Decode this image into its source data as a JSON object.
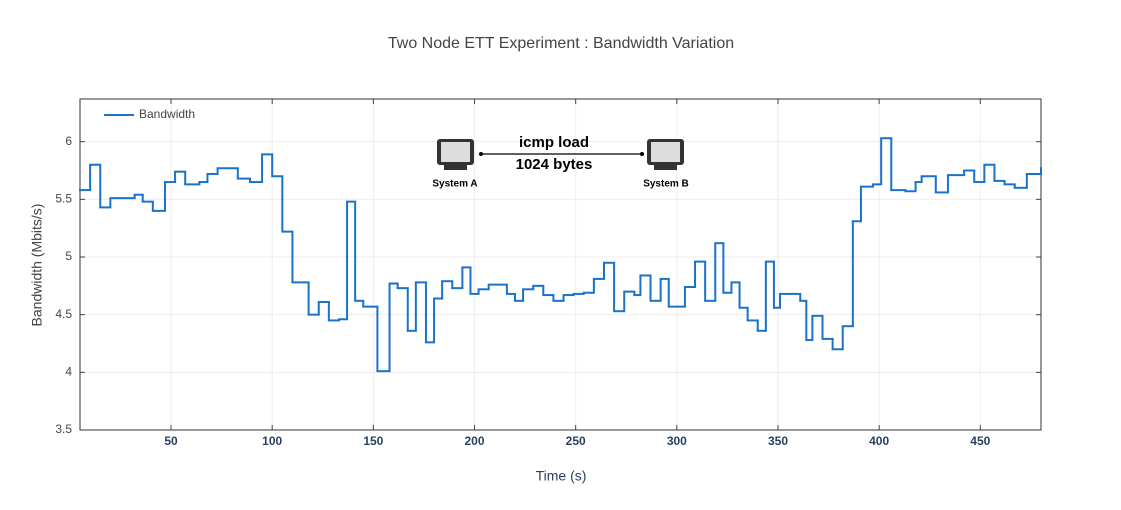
{
  "chart_data": {
    "type": "step-line",
    "title": "Two Node ETT Experiment : Bandwidth Variation",
    "x_label": "Time (s)",
    "y_label": "Bandwidth (Mbits/s)",
    "xlim": [
      5,
      480
    ],
    "ylim": [
      3.5,
      6.37
    ],
    "xticks": [
      50,
      100,
      150,
      200,
      250,
      300,
      350,
      400,
      450
    ],
    "yticks": [
      3.5,
      4,
      4.5,
      5,
      5.5,
      6
    ],
    "grid": true,
    "legend": "top-left",
    "x": [
      5,
      10,
      15,
      20,
      32,
      36,
      41,
      47,
      52,
      57,
      64,
      68,
      73,
      83,
      89,
      95,
      100,
      105,
      110,
      118,
      123,
      128,
      133,
      137,
      141,
      145,
      152,
      158,
      162,
      167,
      171,
      176,
      180,
      184,
      189,
      194,
      198,
      202,
      207,
      216,
      220,
      224,
      229,
      234,
      239,
      244,
      249,
      254,
      259,
      264,
      269,
      274,
      279,
      282,
      287,
      292,
      296,
      304,
      309,
      314,
      319,
      323,
      327,
      331,
      335,
      340,
      344,
      348,
      351,
      356,
      361,
      364,
      367,
      372,
      377,
      382,
      387,
      391,
      397,
      401,
      406,
      413,
      418,
      421,
      428,
      434,
      442,
      447,
      452,
      457,
      462,
      467,
      473,
      480
    ],
    "series": [
      {
        "name": "Bandwidth",
        "color": "#1a73c9",
        "values": [
          5.58,
          5.8,
          5.43,
          5.51,
          5.54,
          5.48,
          5.4,
          5.65,
          5.74,
          5.63,
          5.65,
          5.72,
          5.77,
          5.68,
          5.65,
          5.89,
          5.7,
          5.22,
          4.78,
          4.5,
          4.61,
          4.45,
          4.46,
          5.48,
          4.62,
          4.57,
          4.01,
          4.77,
          4.73,
          4.36,
          4.78,
          4.26,
          4.64,
          4.79,
          4.73,
          4.91,
          4.68,
          4.72,
          4.76,
          4.68,
          4.62,
          4.72,
          4.75,
          4.67,
          4.62,
          4.67,
          4.68,
          4.69,
          4.81,
          4.95,
          4.53,
          4.7,
          4.67,
          4.84,
          4.62,
          4.81,
          4.57,
          4.74,
          4.96,
          4.62,
          5.12,
          4.69,
          4.78,
          4.56,
          4.45,
          4.36,
          4.96,
          4.56,
          4.68,
          4.68,
          4.62,
          4.28,
          4.49,
          4.29,
          4.2,
          4.4,
          5.31,
          5.61,
          5.63,
          6.03,
          5.58,
          5.57,
          5.65,
          5.7,
          5.56,
          5.71,
          5.75,
          5.65,
          5.8,
          5.66,
          5.63,
          5.6,
          5.72,
          5.77
        ]
      }
    ],
    "inset": {
      "load_label": "icmp load",
      "size_label": "1024 bytes",
      "node_a": "System A",
      "node_b": "System B"
    }
  }
}
